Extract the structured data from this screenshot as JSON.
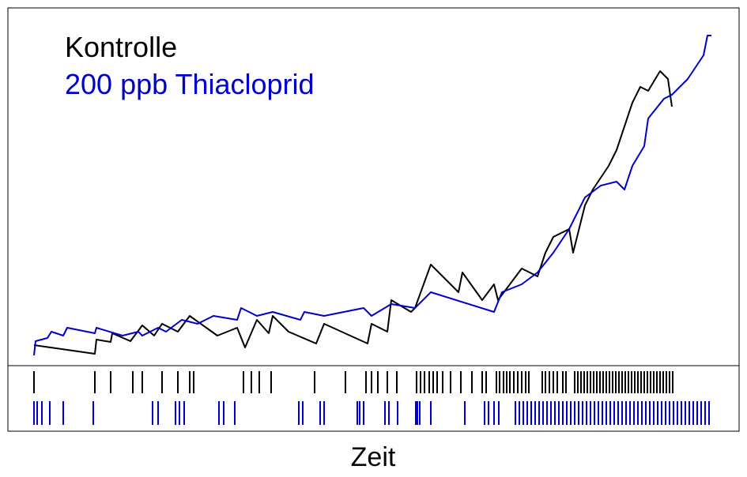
{
  "chart_data": {
    "type": "line-raster",
    "x_label": "Zeit",
    "xlim": [
      0,
      925
    ],
    "ylim": [
      0,
      453
    ],
    "series": [
      {
        "name": "Kontrolle",
        "color": "#000000",
        "x": [
          33,
          110,
          112,
          130,
          132,
          155,
          170,
          185,
          195,
          215,
          230,
          265,
          290,
          300,
          315,
          330,
          335,
          355,
          390,
          400,
          455,
          460,
          480,
          485,
          510,
          515,
          535,
          570,
          575,
          600,
          615,
          620,
          650,
          670,
          680,
          690,
          710,
          715,
          730,
          740,
          760,
          770,
          780,
          790,
          800,
          810,
          825,
          835,
          840
        ],
        "y": [
          26,
          15,
          33,
          30,
          41,
          31,
          51,
          38,
          53,
          43,
          63,
          38,
          48,
          23,
          58,
          41,
          63,
          43,
          28,
          53,
          28,
          53,
          43,
          83,
          68,
          73,
          128,
          93,
          118,
          83,
          103,
          83,
          123,
          113,
          143,
          163,
          173,
          143,
          203,
          223,
          253,
          273,
          303,
          333,
          353,
          348,
          373,
          363,
          328
        ],
        "events": [
          33,
          110,
          130,
          158,
          170,
          195,
          215,
          230,
          235,
          298,
          308,
          318,
          333,
          388,
          427,
          453,
          460,
          468,
          480,
          492,
          517,
          522,
          527,
          533,
          538,
          543,
          550,
          560,
          573,
          587,
          600,
          605,
          618,
          622,
          627,
          631,
          635,
          640,
          645,
          650,
          655,
          659,
          676,
          680,
          685,
          690,
          695,
          702,
          706,
          717,
          721,
          725,
          729,
          733,
          737,
          741,
          745,
          749,
          753,
          757,
          761,
          765,
          769,
          773,
          777,
          781,
          785,
          789,
          793,
          797,
          801,
          805,
          809,
          813,
          817,
          821,
          825,
          829,
          833,
          837,
          841
        ]
      },
      {
        "name": "200 ppb Thiacloprid",
        "color": "#0000cc",
        "x": [
          33,
          35,
          50,
          55,
          70,
          75,
          110,
          112,
          145,
          165,
          170,
          190,
          200,
          220,
          240,
          260,
          290,
          295,
          315,
          335,
          370,
          375,
          400,
          450,
          460,
          485,
          515,
          535,
          615,
          625,
          650,
          670,
          690,
          710,
          730,
          750,
          770,
          780,
          790,
          805,
          810,
          830,
          840,
          860,
          870,
          880,
          885,
          890
        ],
        "y": [
          13,
          31,
          35,
          43,
          38,
          48,
          41,
          48,
          38,
          43,
          38,
          48,
          43,
          58,
          53,
          63,
          58,
          73,
          63,
          68,
          58,
          68,
          63,
          73,
          63,
          78,
          73,
          93,
          68,
          93,
          103,
          118,
          143,
          173,
          213,
          228,
          233,
          223,
          253,
          278,
          313,
          338,
          343,
          363,
          378,
          393,
          418,
          418
        ],
        "events": [
          33,
          37,
          43,
          53,
          70,
          108,
          183,
          190,
          212,
          217,
          223,
          267,
          273,
          287,
          368,
          373,
          395,
          400,
          442,
          445,
          450,
          477,
          482,
          493,
          516,
          518,
          521,
          535,
          578,
          603,
          608,
          615,
          621,
          642,
          647,
          652,
          657,
          662,
          667,
          672,
          677,
          682,
          687,
          692,
          697,
          702,
          707,
          712,
          717,
          722,
          727,
          732,
          737,
          742,
          747,
          752,
          757,
          762,
          767,
          772,
          777,
          782,
          787,
          792,
          797,
          802,
          807,
          812,
          817,
          822,
          827,
          832,
          837,
          842,
          847,
          852,
          857,
          862,
          867,
          872,
          877,
          882,
          887
        ]
      }
    ]
  }
}
